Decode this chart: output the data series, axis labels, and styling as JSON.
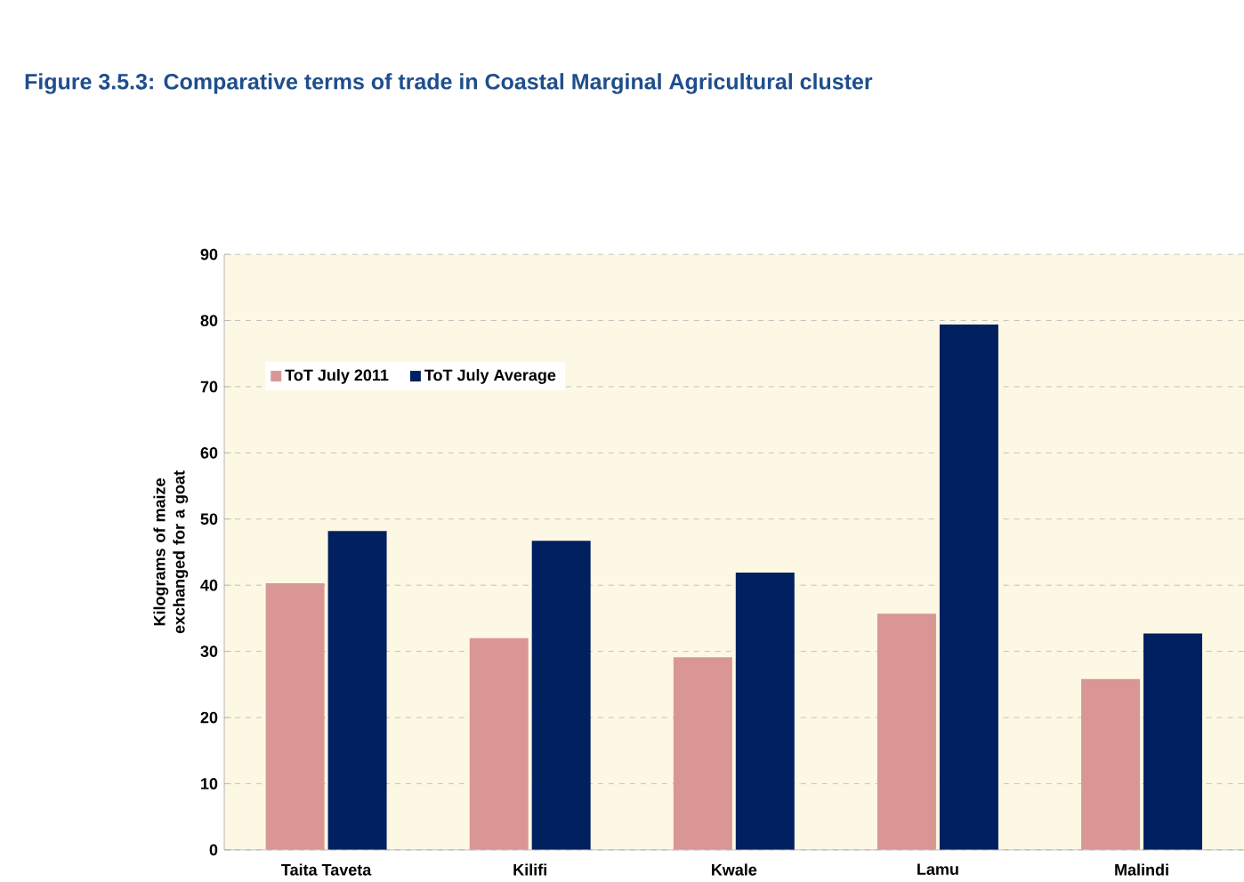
{
  "chart_data": {
    "type": "bar",
    "title": "Figure 3.5.3: Comparative terms of trade in Coastal Marginal Agricultural cluster",
    "ylabel": "Kilograms of maize exchanged for a goat",
    "categories": [
      "Taita Taveta",
      "Kilifi",
      "Kwale",
      "Lamu",
      "Malindi"
    ],
    "series": [
      {
        "name": "ToT July 2011",
        "color": "#d99694",
        "values": [
          40.3,
          32.0,
          29.1,
          35.7,
          25.8
        ]
      },
      {
        "name": "ToT July Average",
        "color": "#002060",
        "values": [
          48.2,
          46.7,
          41.9,
          79.4,
          32.7
        ]
      }
    ],
    "ylim": [
      0,
      90
    ],
    "yticks": [
      0,
      10,
      20,
      30,
      40,
      50,
      60,
      70,
      80,
      90
    ],
    "grid": "y",
    "legend": "top left"
  }
}
